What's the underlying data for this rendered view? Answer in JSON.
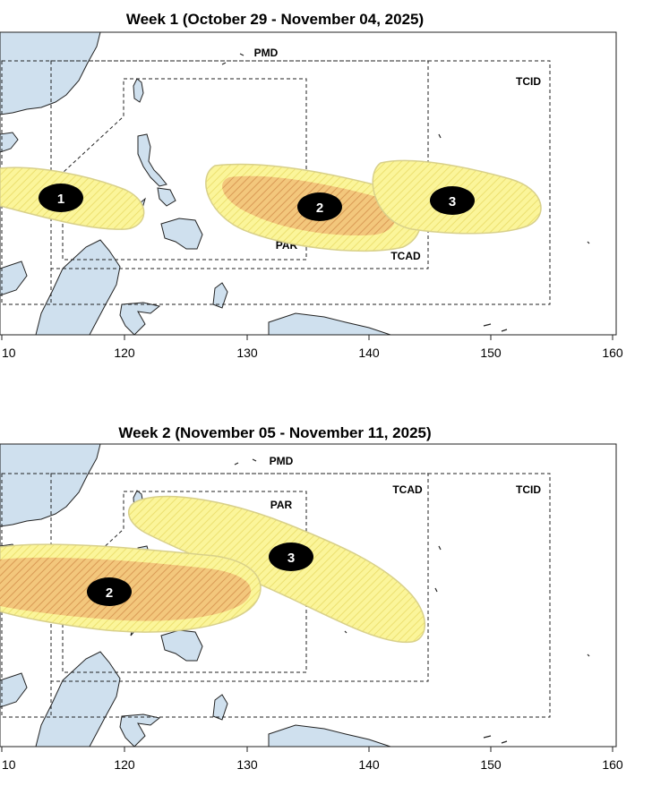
{
  "colors": {
    "land": "#cfe0ee",
    "coast": "#222222",
    "zone_fill": "#fbf59a",
    "zone_hatch": "#e9dc5a",
    "core_fill": "#f3c77c",
    "core_hatch": "#d99a55",
    "marker": "#000000"
  },
  "x_axis_ticks": [
    "10",
    "120",
    "130",
    "140",
    "150",
    "160"
  ],
  "panels": [
    {
      "title": "Week 1 (October 29 - November 04, 2025)",
      "labels": {
        "pmd": "PMD",
        "tcid": "TCID",
        "tcad": "TCAD",
        "par": "PAR"
      },
      "markers": [
        "1",
        "2",
        "3"
      ]
    },
    {
      "title": "Week 2 (November 05 - November 11, 2025)",
      "labels": {
        "pmd": "PMD",
        "tcid": "TCID",
        "tcad": "TCAD",
        "par": "PAR"
      },
      "markers": [
        "2",
        "3"
      ]
    }
  ]
}
